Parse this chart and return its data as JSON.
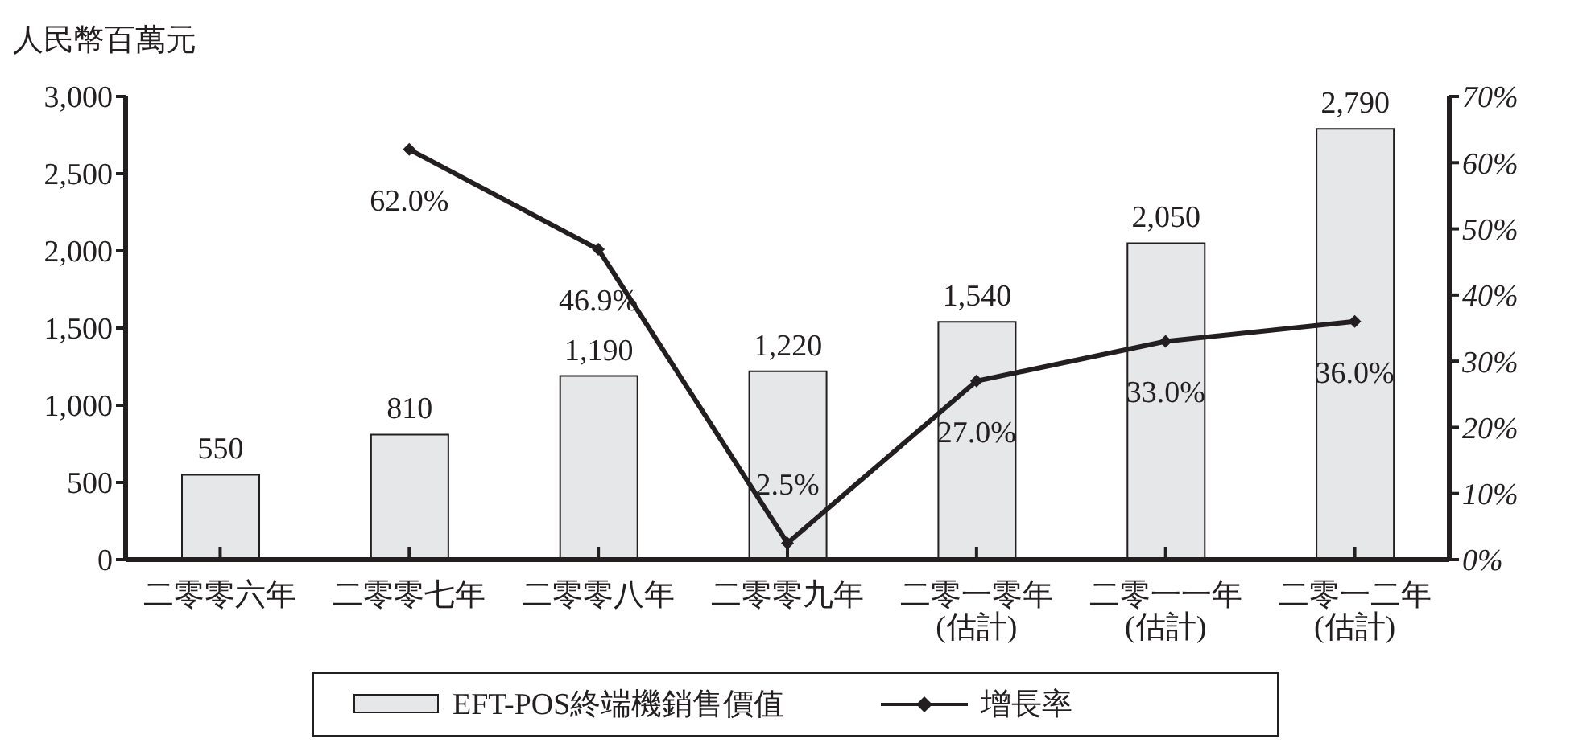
{
  "chart_data": {
    "type": "bar",
    "ylabel": "人民幣百萬元",
    "categories": [
      "二零零六年",
      "二零零七年",
      "二零零八年",
      "二零零九年",
      "二零一零年\n(估計)",
      "二零一一年\n(估計)",
      "二零一二年\n(估計)"
    ],
    "series": [
      {
        "name": "EFT-POS終端機銷售價值",
        "color": "#e6e7e9",
        "values": [
          550,
          810,
          1190,
          1220,
          1540,
          2050,
          2790
        ],
        "value_labels": [
          "550",
          "810",
          "1,190",
          "1,220",
          "1,540",
          "2,050",
          "2,790"
        ]
      },
      {
        "name": "增長率",
        "type": "line",
        "axis": "y2",
        "color": "#231f20",
        "values": [
          null,
          62.0,
          46.9,
          2.5,
          27.0,
          33.0,
          36.0
        ],
        "value_labels": [
          null,
          "62.0%",
          "46.9%",
          "2.5%",
          "27.0%",
          "33.0%",
          "36.0%"
        ]
      }
    ],
    "ylim": [
      0,
      3000
    ],
    "yticks": [
      0,
      500,
      {
        "value": 1000,
        "label": "1,000"
      },
      {
        "value": 1500,
        "label": "1,500"
      },
      {
        "value": 2000,
        "label": "2,000"
      },
      {
        "value": 2500,
        "label": "2,500"
      },
      {
        "value": 3000,
        "label": "3,000"
      }
    ],
    "y2lim": [
      0,
      70
    ],
    "y2ticks": [
      {
        "value": 0,
        "label": "0%"
      },
      {
        "value": 10,
        "label": "10%"
      },
      {
        "value": 20,
        "label": "20%"
      },
      {
        "value": 30,
        "label": "30%"
      },
      {
        "value": 40,
        "label": "40%"
      },
      {
        "value": 50,
        "label": "50%"
      },
      {
        "value": 60,
        "label": "60%"
      },
      {
        "value": 70,
        "label": "70%"
      }
    ],
    "grid": false,
    "legend": "bottom",
    "marker": "diamond",
    "line_style": "solid"
  }
}
